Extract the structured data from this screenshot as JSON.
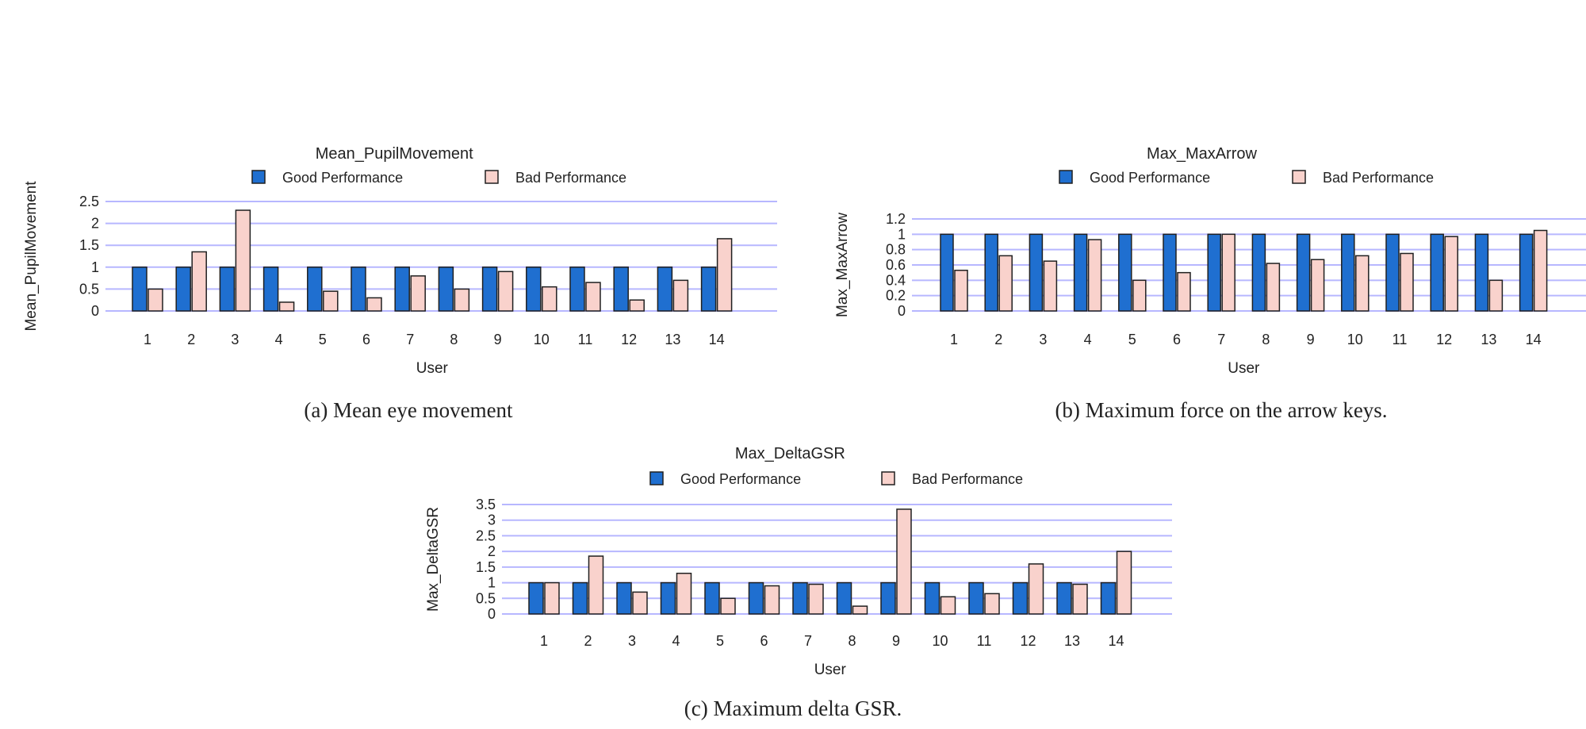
{
  "colors": {
    "good": "#1f6fd0",
    "bad": "#f9d2cc",
    "grid": "#b7b7ff",
    "bar_stroke": "#202020"
  },
  "legend": {
    "good_label": "Good Performance",
    "bad_label": "Bad Performance"
  },
  "captions": [
    "(a) Mean eye movement",
    "(b) Maximum force on the arrow keys.",
    "(c) Maximum delta GSR."
  ],
  "chart_data": [
    {
      "type": "bar",
      "title": "Mean_PupilMovement",
      "xlabel": "User",
      "ylabel": "Mean_PupilMovement",
      "categories": [
        "1",
        "2",
        "3",
        "4",
        "5",
        "6",
        "7",
        "8",
        "9",
        "10",
        "11",
        "12",
        "13",
        "14"
      ],
      "ylim": [
        0,
        2.5
      ],
      "yticks": [
        0,
        0.5,
        1,
        1.5,
        2,
        2.5
      ],
      "ytick_labels": [
        "0",
        "0.5",
        "1",
        "1.5",
        "2",
        "2.5"
      ],
      "grid": true,
      "legend": "top",
      "series": [
        {
          "name": "Good Performance",
          "values": [
            1,
            1,
            1,
            1,
            1,
            1,
            1,
            1,
            1,
            1,
            1,
            1,
            1,
            1
          ]
        },
        {
          "name": "Bad Performance",
          "values": [
            0.5,
            1.35,
            2.3,
            0.2,
            0.45,
            0.3,
            0.8,
            0.5,
            0.9,
            0.55,
            0.65,
            0.25,
            0.7,
            1.65
          ]
        }
      ]
    },
    {
      "type": "bar",
      "title": "Max_MaxArrow",
      "xlabel": "User",
      "ylabel": "Max_MaxArrow",
      "categories": [
        "1",
        "2",
        "3",
        "4",
        "5",
        "6",
        "7",
        "8",
        "9",
        "10",
        "11",
        "12",
        "13",
        "14"
      ],
      "ylim": [
        0,
        1.2
      ],
      "yticks": [
        0,
        0.2,
        0.4,
        0.6,
        0.8,
        1,
        1.2
      ],
      "ytick_labels": [
        "0",
        "0.2",
        "0.4",
        "0.6",
        "0.8",
        "1",
        "1.2"
      ],
      "grid": true,
      "legend": "top",
      "series": [
        {
          "name": "Good Performance",
          "values": [
            1,
            1,
            1,
            1,
            1,
            1,
            1,
            1,
            1,
            1,
            1,
            1,
            1,
            1
          ]
        },
        {
          "name": "Bad Performance",
          "values": [
            0.53,
            0.72,
            0.65,
            0.93,
            0.4,
            0.5,
            1.0,
            0.62,
            0.67,
            0.72,
            0.75,
            0.97,
            0.4,
            1.05
          ]
        }
      ]
    },
    {
      "type": "bar",
      "title": "Max_DeltaGSR",
      "xlabel": "User",
      "ylabel": "Max_DeltaGSR",
      "categories": [
        "1",
        "2",
        "3",
        "4",
        "5",
        "6",
        "7",
        "8",
        "9",
        "10",
        "11",
        "12",
        "13",
        "14"
      ],
      "ylim": [
        0,
        3.5
      ],
      "yticks": [
        0,
        0.5,
        1,
        1.5,
        2,
        2.5,
        3,
        3.5
      ],
      "ytick_labels": [
        "0",
        "0.5",
        "1",
        "1.5",
        "2",
        "2.5",
        "3",
        "3.5"
      ],
      "grid": true,
      "legend": "top",
      "series": [
        {
          "name": "Good Performance",
          "values": [
            1,
            1,
            1,
            1,
            1,
            1,
            1,
            1,
            1,
            1,
            1,
            1,
            1,
            1
          ]
        },
        {
          "name": "Bad Performance",
          "values": [
            1.0,
            1.85,
            0.7,
            1.3,
            0.5,
            0.9,
            0.95,
            0.25,
            3.35,
            0.55,
            0.65,
            1.6,
            0.95,
            2.0
          ]
        }
      ]
    }
  ]
}
